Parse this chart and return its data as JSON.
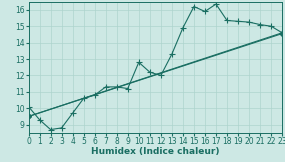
{
  "xlabel": "Humidex (Indice chaleur)",
  "xlim": [
    0,
    23
  ],
  "ylim": [
    8.5,
    16.5
  ],
  "xticks": [
    0,
    1,
    2,
    3,
    4,
    5,
    6,
    7,
    8,
    9,
    10,
    11,
    12,
    13,
    14,
    15,
    16,
    17,
    18,
    19,
    20,
    21,
    22,
    23
  ],
  "yticks": [
    9,
    10,
    11,
    12,
    13,
    14,
    15,
    16
  ],
  "bg_color": "#cde8e4",
  "line_color": "#1a6e62",
  "grid_color": "#aed4ce",
  "line1_x": [
    0,
    1,
    2,
    3,
    4,
    5,
    6,
    7,
    8,
    9,
    10,
    11,
    12,
    13,
    14,
    15,
    16,
    17,
    18,
    19,
    20,
    21,
    22,
    23
  ],
  "line1_y": [
    10.1,
    9.3,
    8.7,
    8.8,
    9.7,
    10.6,
    10.8,
    11.3,
    11.3,
    11.2,
    12.8,
    12.2,
    12.0,
    13.3,
    14.9,
    16.2,
    15.9,
    16.35,
    15.35,
    15.3,
    15.25,
    15.1,
    15.0,
    14.6
  ],
  "line2_x": [
    0,
    23
  ],
  "line2_y": [
    9.5,
    14.6
  ],
  "line3_x": [
    0,
    23
  ],
  "line3_y": [
    9.5,
    14.55
  ],
  "fontsize_label": 6.5,
  "fontsize_tick": 5.5,
  "marker_size": 2.5,
  "line_width": 0.8
}
